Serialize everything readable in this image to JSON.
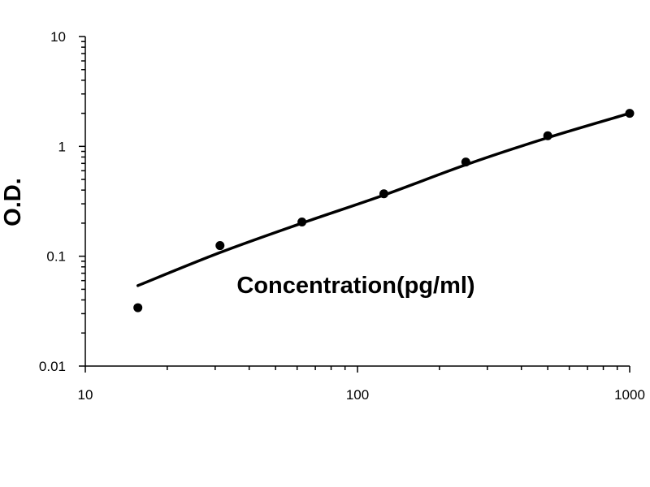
{
  "chart_data": {
    "type": "scatter",
    "xlabel": "Concentration(pg/ml)",
    "ylabel": "O.D.",
    "x_scale": "log",
    "y_scale": "log",
    "xlim": [
      10,
      1000
    ],
    "ylim": [
      0.01,
      10
    ],
    "x_ticks": [
      "10",
      "100",
      "1000"
    ],
    "y_ticks": [
      "0.01",
      "0.1",
      "1",
      "10"
    ],
    "grid": false,
    "series": [
      {
        "type": "scatter",
        "x": [
          15.6,
          31.25,
          62.5,
          125,
          250,
          500,
          1000
        ],
        "y": [
          0.034,
          0.125,
          0.205,
          0.37,
          0.72,
          1.25,
          2.0
        ]
      },
      {
        "type": "line",
        "x": [
          15.6,
          31.25,
          62.5,
          125,
          250,
          500,
          1000
        ],
        "y": [
          0.054,
          0.108,
          0.2,
          0.36,
          0.68,
          1.2,
          2.0
        ]
      }
    ]
  }
}
